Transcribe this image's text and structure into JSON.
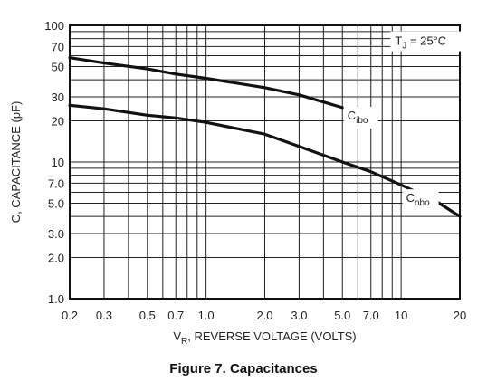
{
  "caption": "Figure 7. Capacitances",
  "chart_data": {
    "type": "line",
    "x_scale": "log",
    "y_scale": "log",
    "xlim": [
      0.2,
      20
    ],
    "ylim": [
      1.0,
      100
    ],
    "xlabel_main": "V",
    "xlabel_sub": "R",
    "xlabel_rest": ", REVERSE VOLTAGE (VOLTS)",
    "ylabel": "C, CAPACITANCE (pF)",
    "x_ticks": [
      {
        "value": 0.2,
        "label": "0.2"
      },
      {
        "value": 0.3,
        "label": "0.3"
      },
      {
        "value": 0.5,
        "label": "0.5"
      },
      {
        "value": 0.7,
        "label": "0.7"
      },
      {
        "value": 1.0,
        "label": "1.0"
      },
      {
        "value": 2.0,
        "label": "2.0"
      },
      {
        "value": 3.0,
        "label": "3.0"
      },
      {
        "value": 5.0,
        "label": "5.0"
      },
      {
        "value": 7.0,
        "label": "7.0"
      },
      {
        "value": 10,
        "label": "10"
      },
      {
        "value": 20,
        "label": "20"
      }
    ],
    "y_ticks": [
      {
        "value": 1.0,
        "label": "1.0"
      },
      {
        "value": 2.0,
        "label": "2.0"
      },
      {
        "value": 3.0,
        "label": "3.0"
      },
      {
        "value": 5.0,
        "label": "5.0"
      },
      {
        "value": 7.0,
        "label": "7.0"
      },
      {
        "value": 10,
        "label": "10"
      },
      {
        "value": 20,
        "label": "20"
      },
      {
        "value": 30,
        "label": "30"
      },
      {
        "value": 50,
        "label": "50"
      },
      {
        "value": 70,
        "label": "70"
      },
      {
        "value": 100,
        "label": "100"
      }
    ],
    "x_grid": [
      0.2,
      0.3,
      0.4,
      0.5,
      0.6,
      0.7,
      0.8,
      0.9,
      1,
      2,
      3,
      4,
      5,
      6,
      7,
      8,
      9,
      10,
      20
    ],
    "y_grid": [
      1,
      2,
      3,
      4,
      5,
      6,
      7,
      8,
      9,
      10,
      20,
      30,
      40,
      50,
      60,
      70,
      80,
      90,
      100
    ],
    "grid": true,
    "annotation": {
      "main": "T",
      "sub": "J",
      "rest": " = 25°C"
    },
    "series": [
      {
        "name_main": "C",
        "name_sub": "ibo",
        "color": "#111111",
        "points": [
          {
            "x": 0.2,
            "y": 58
          },
          {
            "x": 0.3,
            "y": 53
          },
          {
            "x": 0.5,
            "y": 48
          },
          {
            "x": 0.7,
            "y": 44
          },
          {
            "x": 1.0,
            "y": 41
          },
          {
            "x": 2.0,
            "y": 35
          },
          {
            "x": 3.0,
            "y": 31
          },
          {
            "x": 4.0,
            "y": 27.5
          },
          {
            "x": 5.0,
            "y": 25
          }
        ]
      },
      {
        "name_main": "C",
        "name_sub": "obo",
        "color": "#111111",
        "points": [
          {
            "x": 0.2,
            "y": 26
          },
          {
            "x": 0.3,
            "y": 24.5
          },
          {
            "x": 0.5,
            "y": 22
          },
          {
            "x": 0.7,
            "y": 21
          },
          {
            "x": 1.0,
            "y": 19.5
          },
          {
            "x": 2.0,
            "y": 16
          },
          {
            "x": 3.0,
            "y": 13
          },
          {
            "x": 5.0,
            "y": 10
          },
          {
            "x": 7.0,
            "y": 8.5
          },
          {
            "x": 10,
            "y": 6.8
          },
          {
            "x": 15,
            "y": 5.2
          },
          {
            "x": 20,
            "y": 4.0
          }
        ]
      }
    ]
  }
}
